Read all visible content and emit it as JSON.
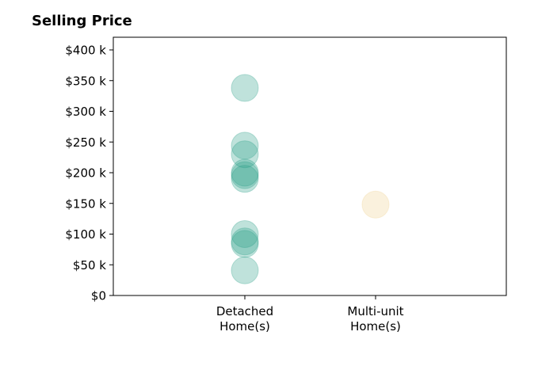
{
  "chart_data": {
    "type": "scatter",
    "title": "Selling Price",
    "xlabel": "",
    "ylabel": "",
    "categories": [
      "Detached\nHome(s)",
      "Multi-unit\nHome(s)"
    ],
    "ylim": [
      0,
      420000
    ],
    "yticks": [
      0,
      50000,
      100000,
      150000,
      200000,
      250000,
      300000,
      350000,
      400000
    ],
    "ytick_labels": [
      "$0",
      "$50 k",
      "$100 k",
      "$150 k",
      "$200 k",
      "$250 k",
      "$300 k",
      "$350 k",
      "$400 k"
    ],
    "grid": false,
    "series": [
      {
        "category": "Detached\nHome(s)",
        "color": "#2ca089",
        "values": [
          338000,
          244000,
          230000,
          200000,
          196000,
          190000,
          100000,
          88000,
          84000,
          41000
        ]
      },
      {
        "category": "Multi-unit\nHome(s)",
        "color": "#f0d090",
        "values": [
          148000
        ]
      }
    ]
  }
}
